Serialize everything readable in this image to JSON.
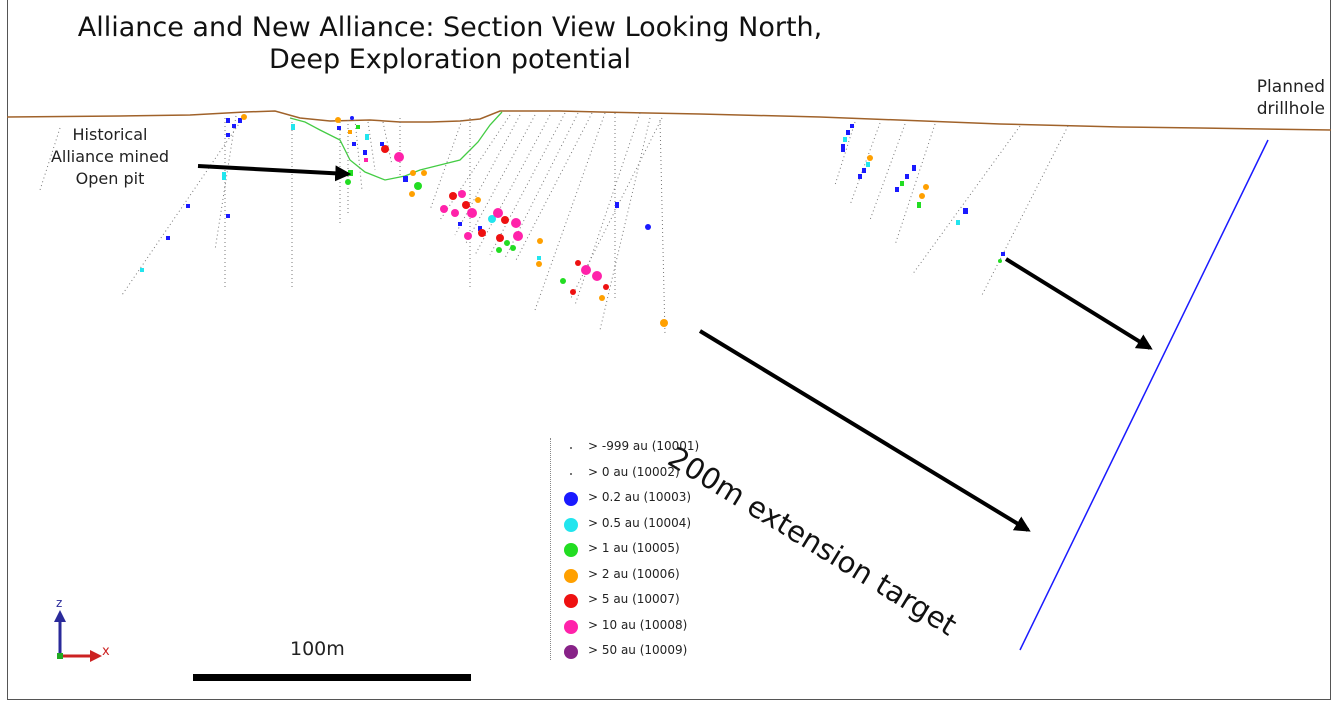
{
  "title": "Alliance and New Alliance: Section View Looking North, Deep Exploration potential",
  "annotations": {
    "historical": "Historical Alliance mined Open pit",
    "planned": "Planned drillhole",
    "extension": "200m extension target"
  },
  "scale_bar": {
    "label": "100m"
  },
  "axes": {
    "z": "z",
    "x": "x"
  },
  "legend": [
    {
      "label": "> -999 au (10001)",
      "color": "#777777",
      "symbol": "dot"
    },
    {
      "label": "> 0 au (10002)",
      "color": "#777777",
      "symbol": "dot"
    },
    {
      "label": "> 0.2 au (10003)",
      "color": "#1a1aff",
      "symbol": "circle"
    },
    {
      "label": "> 0.5 au (10004)",
      "color": "#22e5ee",
      "symbol": "circle"
    },
    {
      "label": "> 1 au (10005)",
      "color": "#22dd22",
      "symbol": "circle"
    },
    {
      "label": "> 2 au (10006)",
      "color": "#ffa000",
      "symbol": "circle"
    },
    {
      "label": "> 5 au (10007)",
      "color": "#ee1111",
      "symbol": "circle"
    },
    {
      "label": "> 10 au (10008)",
      "color": "#ff22aa",
      "symbol": "circle"
    },
    {
      "label": "> 50 au (10009)",
      "color": "#882288",
      "symbol": "circle"
    }
  ],
  "colors": {
    "topography": "#a0622a",
    "pit_outline": "#44cc44",
    "planned_drillhole": "#1a1aff",
    "arrow": "#000000"
  }
}
